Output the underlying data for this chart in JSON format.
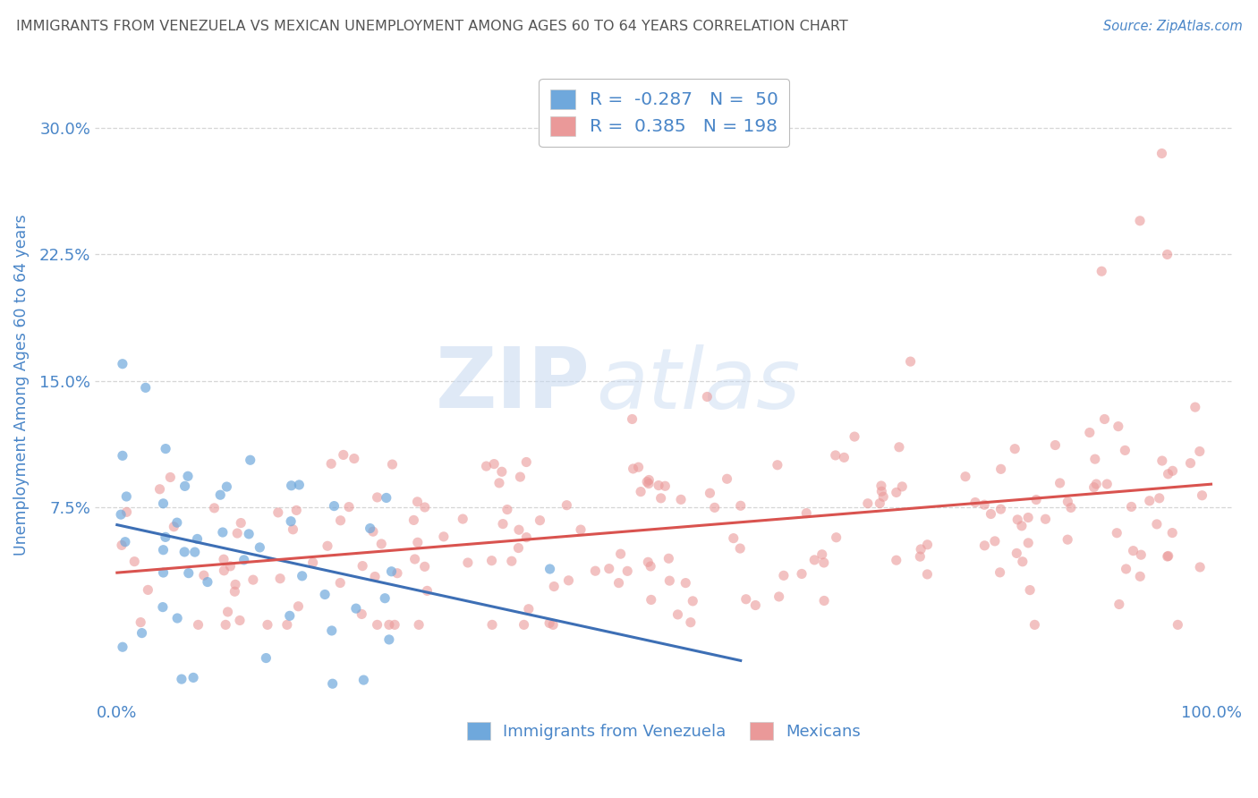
{
  "title": "IMMIGRANTS FROM VENEZUELA VS MEXICAN UNEMPLOYMENT AMONG AGES 60 TO 64 YEARS CORRELATION CHART",
  "source": "Source: ZipAtlas.com",
  "ylabel": "Unemployment Among Ages 60 to 64 years",
  "xlim": [
    -0.02,
    1.02
  ],
  "ylim": [
    -0.04,
    0.335
  ],
  "yticks": [
    0.075,
    0.15,
    0.225,
    0.3
  ],
  "ytick_labels": [
    "7.5%",
    "15.0%",
    "22.5%",
    "30.0%"
  ],
  "xticks": [
    0.0,
    1.0
  ],
  "xtick_labels": [
    "0.0%",
    "100.0%"
  ],
  "blue_R": -0.287,
  "blue_N": 50,
  "pink_R": 0.385,
  "pink_N": 198,
  "blue_color": "#6fa8dc",
  "pink_color": "#ea9999",
  "blue_line_color": "#3d6fb5",
  "pink_line_color": "#d9534f",
  "legend_blue_label": "Immigrants from Venezuela",
  "legend_pink_label": "Mexicans",
  "watermark_zip": "ZIP",
  "watermark_atlas": "atlas",
  "background_color": "#ffffff",
  "grid_color": "#cccccc",
  "title_color": "#555555",
  "tick_label_color": "#4a86c8"
}
